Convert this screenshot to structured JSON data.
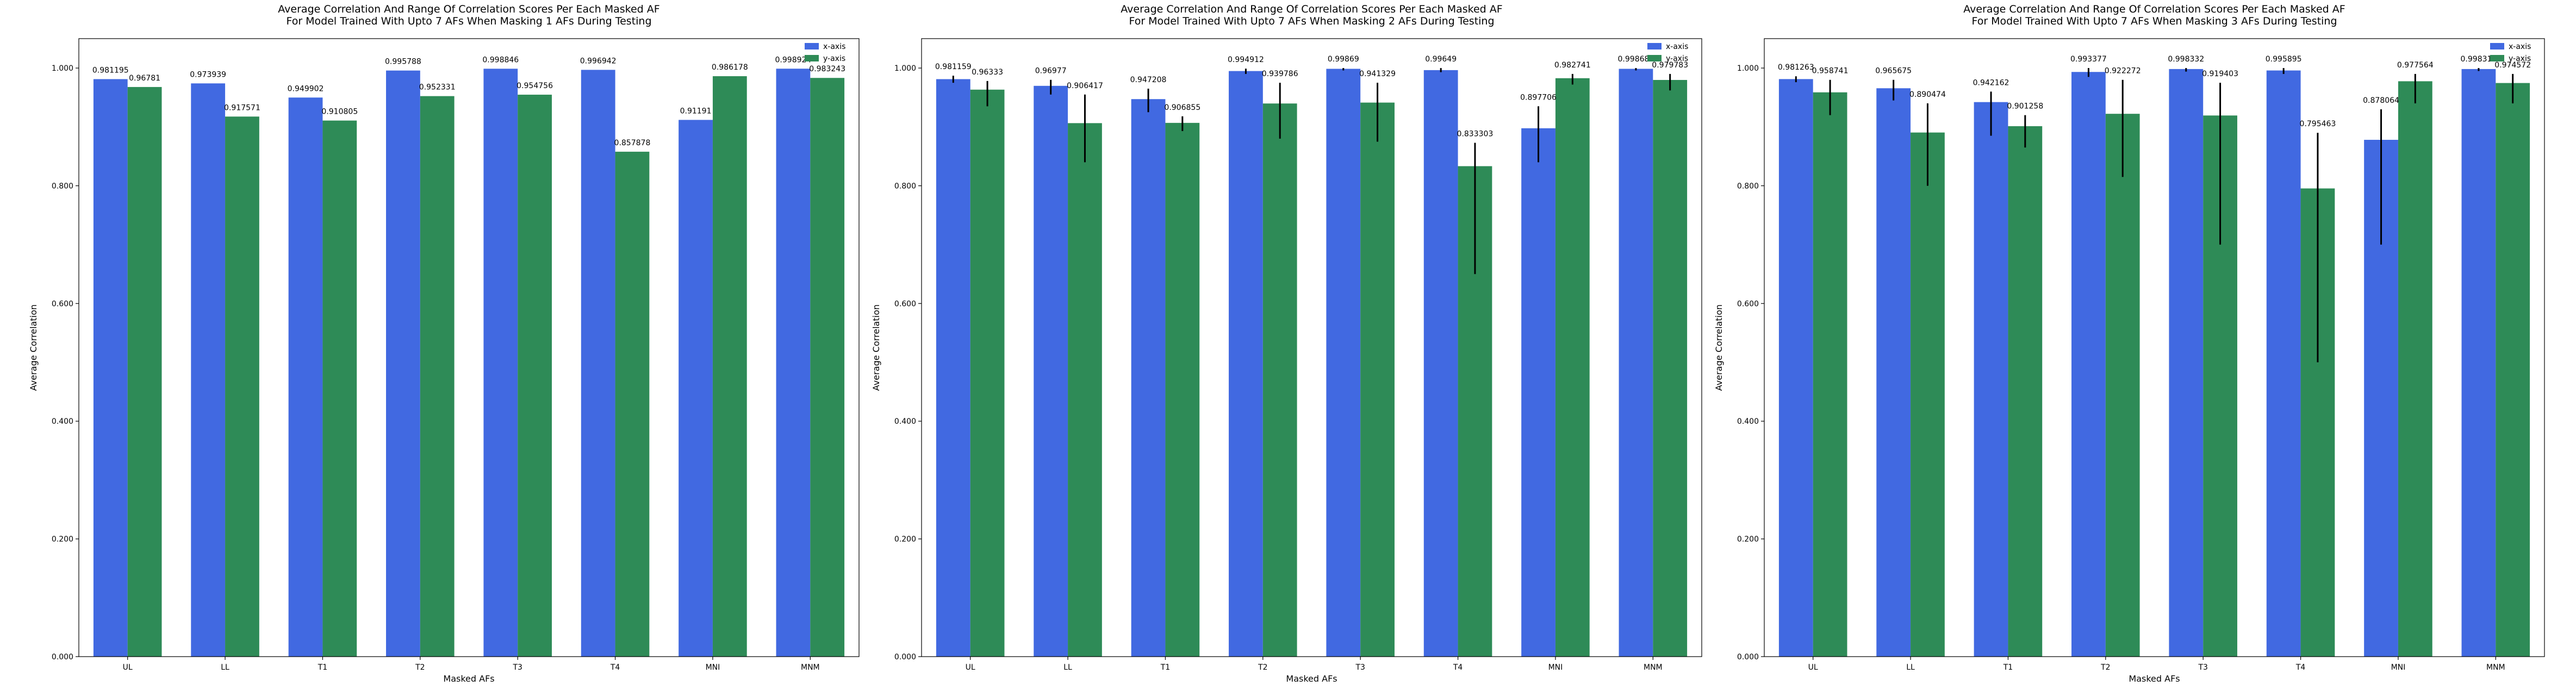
{
  "colors": {
    "x_axis": "#4169e1",
    "y_axis": "#2e8b57",
    "error_bar": "#000000",
    "frame": "#000000"
  },
  "chart_data": [
    {
      "type": "bar",
      "title_line1": "Average Correlation And Range Of Correlation Scores Per Each Masked AF",
      "title_line2": "For Model Trained With Upto 7 AFs When Masking 1 AFs During Testing",
      "xlabel": "Masked AFs",
      "ylabel": "Average Correlation",
      "categories": [
        "UL",
        "LL",
        "T1",
        "T2",
        "T3",
        "T4",
        "MNI",
        "MNM"
      ],
      "ylim": [
        0,
        1.05
      ],
      "yticks": [
        0.0,
        0.2,
        0.4,
        0.6,
        0.8,
        1.0
      ],
      "ytick_labels": [
        "0.000",
        "0.200",
        "0.400",
        "0.600",
        "0.800",
        "1.000"
      ],
      "legend_position": "top-right",
      "series": [
        {
          "name": "x-axis",
          "values": [
            0.981195,
            0.973939,
            0.949902,
            0.995788,
            0.998846,
            0.996942,
            0.91191,
            0.998924
          ],
          "labels": [
            "0.981195",
            "0.973939",
            "0.949902",
            "0.995788",
            "0.998846",
            "0.996942",
            "0.91191",
            "0.998924"
          ],
          "err_low": [
            null,
            null,
            null,
            null,
            null,
            null,
            null,
            null
          ],
          "err_high": [
            null,
            null,
            null,
            null,
            null,
            null,
            null,
            null
          ]
        },
        {
          "name": "y-axis",
          "values": [
            0.96781,
            0.917571,
            0.910805,
            0.952331,
            0.954756,
            0.857878,
            0.986178,
            0.983243
          ],
          "labels": [
            "0.96781",
            "0.917571",
            "0.910805",
            "0.952331",
            "0.954756",
            "0.857878",
            "0.986178",
            "0.983243"
          ],
          "err_low": [
            null,
            null,
            null,
            null,
            null,
            null,
            null,
            null
          ],
          "err_high": [
            null,
            null,
            null,
            null,
            null,
            null,
            null,
            null
          ]
        }
      ]
    },
    {
      "type": "bar",
      "title_line1": "Average Correlation And Range Of Correlation Scores Per Each Masked AF",
      "title_line2": "For Model Trained With Upto 7 AFs When Masking 2 AFs During Testing",
      "xlabel": "Masked AFs",
      "ylabel": "Average Correlation",
      "categories": [
        "UL",
        "LL",
        "T1",
        "T2",
        "T3",
        "T4",
        "MNI",
        "MNM"
      ],
      "ylim": [
        0,
        1.05
      ],
      "yticks": [
        0.0,
        0.2,
        0.4,
        0.6,
        0.8,
        1.0
      ],
      "ytick_labels": [
        "0.000",
        "0.200",
        "0.400",
        "0.600",
        "0.800",
        "1.000"
      ],
      "legend_position": "top-right",
      "series": [
        {
          "name": "x-axis",
          "values": [
            0.981159,
            0.96977,
            0.947208,
            0.994912,
            0.99869,
            0.99649,
            0.897706,
            0.998683
          ],
          "labels": [
            "0.981159",
            "0.96977",
            "0.947208",
            "0.994912",
            "0.99869",
            "0.99649",
            "0.897706",
            "0.998683"
          ],
          "err_low": [
            0.975,
            0.955,
            0.925,
            0.99,
            0.996,
            0.993,
            0.84,
            0.996
          ],
          "err_high": [
            0.987,
            0.98,
            0.965,
            0.999,
            1.0,
            1.0,
            0.935,
            1.0
          ]
        },
        {
          "name": "y-axis",
          "values": [
            0.96333,
            0.906417,
            0.906855,
            0.939786,
            0.941329,
            0.833303,
            0.982741,
            0.979783
          ],
          "labels": [
            "0.96333",
            "0.906417",
            "0.906855",
            "0.939786",
            "0.941329",
            "0.833303",
            "0.982741",
            "0.979783"
          ],
          "err_low": [
            0.935,
            0.84,
            0.893,
            0.88,
            0.875,
            0.65,
            0.972,
            0.962
          ],
          "err_high": [
            0.978,
            0.955,
            0.918,
            0.975,
            0.975,
            0.873,
            0.99,
            0.99
          ]
        }
      ]
    },
    {
      "type": "bar",
      "title_line1": "Average Correlation And Range Of Correlation Scores Per Each Masked AF",
      "title_line2": "For Model Trained With Upto 7 AFs When Masking 3 AFs During Testing",
      "xlabel": "Masked AFs",
      "ylabel": "Average Correlation",
      "categories": [
        "UL",
        "LL",
        "T1",
        "T2",
        "T3",
        "T4",
        "MNI",
        "MNM"
      ],
      "ylim": [
        0,
        1.05
      ],
      "yticks": [
        0.0,
        0.2,
        0.4,
        0.6,
        0.8,
        1.0
      ],
      "ytick_labels": [
        "0.000",
        "0.200",
        "0.400",
        "0.600",
        "0.800",
        "1.000"
      ],
      "legend_position": "top-right",
      "series": [
        {
          "name": "x-axis",
          "values": [
            0.981263,
            0.965675,
            0.942162,
            0.993377,
            0.998332,
            0.995895,
            0.878064,
            0.998316
          ],
          "labels": [
            "0.981263",
            "0.965675",
            "0.942162",
            "0.993377",
            "0.998332",
            "0.995895",
            "0.878064",
            "0.998316"
          ],
          "err_low": [
            0.976,
            0.945,
            0.885,
            0.985,
            0.994,
            0.99,
            0.7,
            0.995
          ],
          "err_high": [
            0.986,
            0.98,
            0.96,
            1.0,
            1.0,
            1.0,
            0.93,
            1.0
          ]
        },
        {
          "name": "y-axis",
          "values": [
            0.958741,
            0.890474,
            0.901258,
            0.922272,
            0.919403,
            0.795463,
            0.977564,
            0.974572
          ],
          "labels": [
            "0.958741",
            "0.890474",
            "0.901258",
            "0.922272",
            "0.919403",
            "0.795463",
            "0.977564",
            "0.974572"
          ],
          "err_low": [
            0.92,
            0.8,
            0.865,
            0.815,
            0.7,
            0.5,
            0.94,
            0.94
          ],
          "err_high": [
            0.98,
            0.94,
            0.92,
            0.98,
            0.975,
            0.89,
            0.99,
            0.99
          ]
        }
      ]
    }
  ]
}
